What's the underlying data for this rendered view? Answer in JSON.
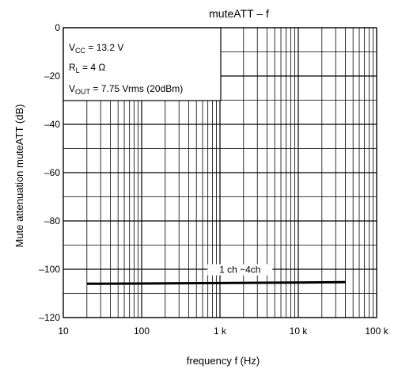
{
  "chart_data": {
    "type": "line",
    "title": "muteATT – f",
    "xlabel": "frequency   f   (Hz)",
    "ylabel": "Mute attenuation   muteATT   (dB)",
    "x_scale": "log",
    "xlim": [
      10,
      100000
    ],
    "ylim": [
      -120,
      0
    ],
    "grid": true,
    "x_ticks": [
      {
        "value": 10,
        "label": "10"
      },
      {
        "value": 100,
        "label": "100"
      },
      {
        "value": 1000,
        "label": "1 k"
      },
      {
        "value": 10000,
        "label": "10 k"
      },
      {
        "value": 100000,
        "label": "100 k"
      }
    ],
    "y_ticks": [
      {
        "value": 0,
        "label": "0"
      },
      {
        "value": -20,
        "label": "–20"
      },
      {
        "value": -40,
        "label": "–40"
      },
      {
        "value": -60,
        "label": "–60"
      },
      {
        "value": -80,
        "label": "–80"
      },
      {
        "value": -100,
        "label": "–100"
      },
      {
        "value": -120,
        "label": "–120"
      }
    ],
    "conditions": [
      {
        "main": "V",
        "sub": "CC",
        "rest": " = 13.2 V"
      },
      {
        "main": "R",
        "sub": "L",
        "rest": " = 4 Ω"
      },
      {
        "main": "V",
        "sub": "OUT",
        "rest": " = 7.75 Vrms (20dBm)"
      }
    ],
    "series": [
      {
        "name": "1 ch ~4ch",
        "x": [
          20,
          100,
          1000,
          10000,
          40000
        ],
        "y": [
          -106,
          -105.9,
          -105.7,
          -105.5,
          -105.3
        ]
      }
    ],
    "colors": {
      "line": "#000000",
      "grid": "#000000",
      "background": "#ffffff"
    }
  }
}
